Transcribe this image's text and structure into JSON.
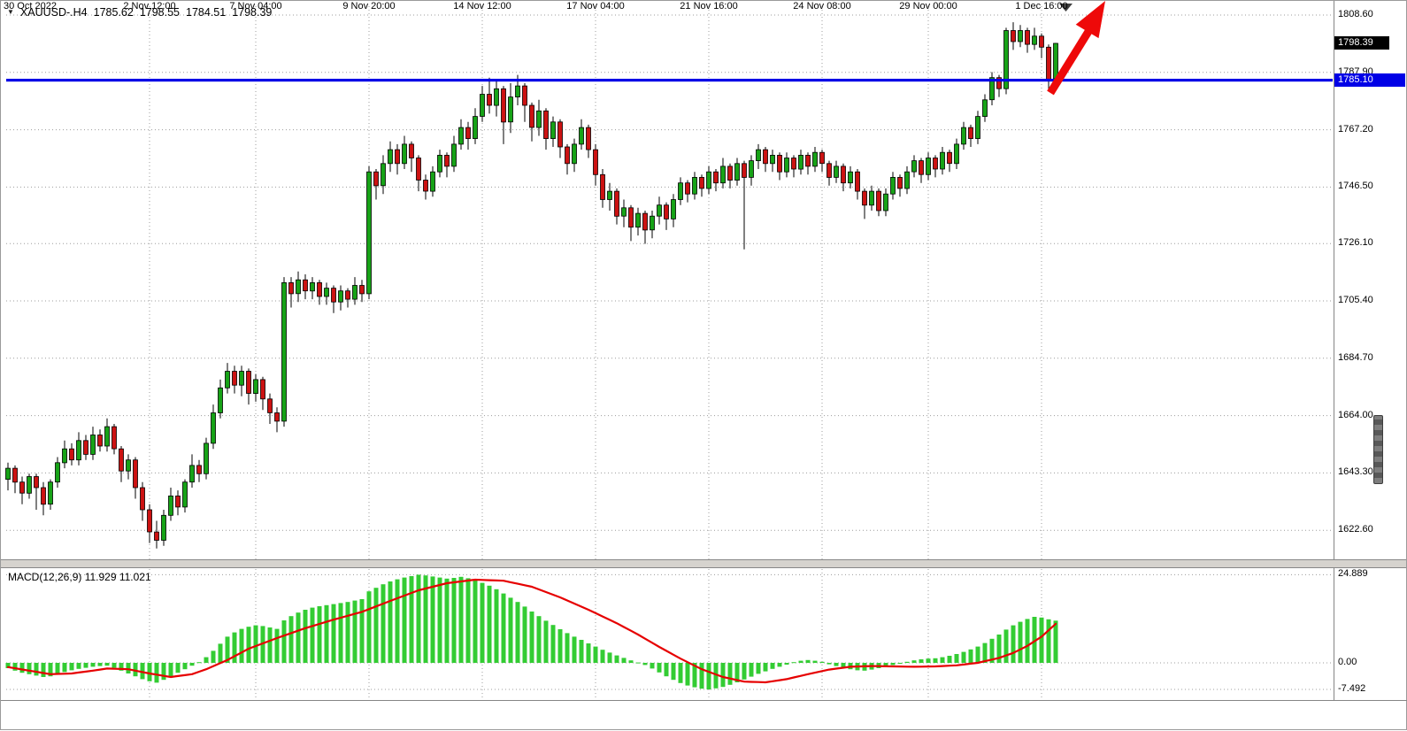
{
  "header": {
    "dropdown_icon": "▼",
    "symbol_period": "XAUUSD-.H4",
    "open": "1785.62",
    "high": "1798.55",
    "low": "1784.51",
    "close": "1798.39"
  },
  "colors": {
    "up": "#17a317",
    "down": "#cc1212",
    "outline": "#000000",
    "wick": "#000000",
    "grid": "#9c9c9c",
    "hline": "#0000e6",
    "macd_hist": "#33cc33",
    "macd_signal": "#e60000",
    "arrow": "#ee0909",
    "anchor": "#3f3f3f",
    "badge_current_bg": "#000000",
    "badge_hline_bg": "#0000e6"
  },
  "chart_data": {
    "type": "candlestick",
    "title": "XAUUSD-.H4",
    "timeframe": "H4",
    "legend": "none",
    "grid": "dotted",
    "price_gridlines": [
      {
        "text": "1808.60",
        "value": 1808.6
      },
      {
        "text": "1787.90",
        "value": 1787.9
      },
      {
        "text": "1767.20",
        "value": 1767.2
      },
      {
        "text": "1746.50",
        "value": 1746.5
      },
      {
        "text": "1726.10",
        "value": 1726.1
      },
      {
        "text": "1705.40",
        "value": 1705.4
      },
      {
        "text": "1684.70",
        "value": 1684.7
      },
      {
        "text": "1664.00",
        "value": 1664.0
      },
      {
        "text": "1643.30",
        "value": 1643.3
      },
      {
        "text": "1622.60",
        "value": 1622.6
      }
    ],
    "time_labels": [
      {
        "text": "30 Oct 2022",
        "bar": 0
      },
      {
        "text": "2 Nov 12:00",
        "bar": 20
      },
      {
        "text": "7 Nov 04:00",
        "bar": 35
      },
      {
        "text": "9 Nov 20:00",
        "bar": 51
      },
      {
        "text": "14 Nov 12:00",
        "bar": 67
      },
      {
        "text": "17 Nov 04:00",
        "bar": 83
      },
      {
        "text": "21 Nov 16:00",
        "bar": 99
      },
      {
        "text": "24 Nov 08:00",
        "bar": 115
      },
      {
        "text": "29 Nov 00:00",
        "bar": 130
      },
      {
        "text": "1 Dec 16:00",
        "bar": 146
      }
    ],
    "horizontal_line": {
      "value": 1785.1,
      "label": "1785.10"
    },
    "last_price": {
      "value": 1798.39,
      "label": "1798.39"
    },
    "annotation": {
      "shape": "arrow",
      "direction": "up"
    },
    "ohlc": [
      [
        1641,
        1647,
        1637,
        1645
      ],
      [
        1645,
        1646,
        1636,
        1640
      ],
      [
        1640,
        1642,
        1632,
        1636
      ],
      [
        1636,
        1643,
        1634,
        1642
      ],
      [
        1642,
        1643,
        1630,
        1638
      ],
      [
        1638,
        1640,
        1628,
        1632
      ],
      [
        1632,
        1641,
        1630,
        1640
      ],
      [
        1640,
        1649,
        1638,
        1647
      ],
      [
        1647,
        1655,
        1645,
        1652
      ],
      [
        1652,
        1654,
        1646,
        1648
      ],
      [
        1648,
        1658,
        1646,
        1655
      ],
      [
        1655,
        1657,
        1648,
        1650
      ],
      [
        1650,
        1660,
        1648,
        1657
      ],
      [
        1657,
        1659,
        1651,
        1653
      ],
      [
        1653,
        1663,
        1651,
        1660
      ],
      [
        1660,
        1661,
        1650,
        1652
      ],
      [
        1652,
        1653,
        1640,
        1644
      ],
      [
        1644,
        1650,
        1641,
        1648
      ],
      [
        1648,
        1649,
        1634,
        1638
      ],
      [
        1638,
        1640,
        1626,
        1630
      ],
      [
        1630,
        1632,
        1618,
        1622
      ],
      [
        1622,
        1626,
        1616,
        1619
      ],
      [
        1619,
        1630,
        1617,
        1628
      ],
      [
        1628,
        1638,
        1626,
        1635
      ],
      [
        1635,
        1637,
        1628,
        1631
      ],
      [
        1631,
        1641,
        1629,
        1640
      ],
      [
        1640,
        1650,
        1638,
        1646
      ],
      [
        1646,
        1648,
        1640,
        1643
      ],
      [
        1643,
        1656,
        1641,
        1654
      ],
      [
        1654,
        1668,
        1652,
        1665
      ],
      [
        1665,
        1677,
        1663,
        1674
      ],
      [
        1674,
        1683,
        1672,
        1680
      ],
      [
        1680,
        1682,
        1672,
        1675
      ],
      [
        1675,
        1682,
        1671,
        1680
      ],
      [
        1680,
        1681,
        1668,
        1672
      ],
      [
        1672,
        1679,
        1669,
        1677
      ],
      [
        1677,
        1678,
        1666,
        1670
      ],
      [
        1670,
        1672,
        1661,
        1665
      ],
      [
        1665,
        1667,
        1658,
        1662
      ],
      [
        1662,
        1714,
        1660,
        1712
      ],
      [
        1712,
        1714,
        1703,
        1708
      ],
      [
        1708,
        1716,
        1705,
        1713
      ],
      [
        1713,
        1715,
        1706,
        1709
      ],
      [
        1709,
        1714,
        1706,
        1712
      ],
      [
        1712,
        1713,
        1704,
        1707
      ],
      [
        1707,
        1712,
        1704,
        1710
      ],
      [
        1710,
        1711,
        1701,
        1705
      ],
      [
        1705,
        1711,
        1702,
        1709
      ],
      [
        1709,
        1710,
        1703,
        1706
      ],
      [
        1706,
        1714,
        1704,
        1711
      ],
      [
        1711,
        1713,
        1705,
        1708
      ],
      [
        1708,
        1754,
        1706,
        1752
      ],
      [
        1752,
        1753,
        1742,
        1747
      ],
      [
        1747,
        1758,
        1744,
        1755
      ],
      [
        1755,
        1763,
        1752,
        1760
      ],
      [
        1760,
        1762,
        1751,
        1755
      ],
      [
        1755,
        1765,
        1753,
        1762
      ],
      [
        1762,
        1763,
        1752,
        1757
      ],
      [
        1757,
        1758,
        1745,
        1749
      ],
      [
        1749,
        1751,
        1742,
        1745
      ],
      [
        1745,
        1754,
        1743,
        1752
      ],
      [
        1752,
        1760,
        1750,
        1758
      ],
      [
        1758,
        1759,
        1750,
        1754
      ],
      [
        1754,
        1765,
        1752,
        1762
      ],
      [
        1762,
        1771,
        1760,
        1768
      ],
      [
        1768,
        1770,
        1760,
        1764
      ],
      [
        1764,
        1775,
        1762,
        1772
      ],
      [
        1772,
        1783,
        1770,
        1780
      ],
      [
        1780,
        1786,
        1773,
        1776
      ],
      [
        1776,
        1785,
        1772,
        1782
      ],
      [
        1782,
        1783,
        1762,
        1770
      ],
      [
        1770,
        1784,
        1766,
        1779
      ],
      [
        1779,
        1787,
        1776,
        1783
      ],
      [
        1783,
        1784,
        1770,
        1776
      ],
      [
        1776,
        1777,
        1763,
        1768
      ],
      [
        1768,
        1778,
        1765,
        1774
      ],
      [
        1774,
        1775,
        1760,
        1764
      ],
      [
        1764,
        1772,
        1761,
        1770
      ],
      [
        1770,
        1771,
        1757,
        1761
      ],
      [
        1761,
        1762,
        1751,
        1755
      ],
      [
        1755,
        1764,
        1752,
        1762
      ],
      [
        1762,
        1771,
        1760,
        1768
      ],
      [
        1768,
        1769,
        1757,
        1760
      ],
      [
        1760,
        1762,
        1747,
        1751
      ],
      [
        1751,
        1753,
        1739,
        1742
      ],
      [
        1742,
        1748,
        1738,
        1745
      ],
      [
        1745,
        1746,
        1733,
        1736
      ],
      [
        1736,
        1742,
        1732,
        1739
      ],
      [
        1739,
        1740,
        1727,
        1732
      ],
      [
        1732,
        1739,
        1729,
        1737
      ],
      [
        1737,
        1738,
        1726,
        1731
      ],
      [
        1731,
        1738,
        1728,
        1736
      ],
      [
        1736,
        1743,
        1733,
        1740
      ],
      [
        1740,
        1741,
        1731,
        1735
      ],
      [
        1735,
        1744,
        1732,
        1742
      ],
      [
        1742,
        1750,
        1740,
        1748
      ],
      [
        1748,
        1749,
        1741,
        1744
      ],
      [
        1744,
        1752,
        1742,
        1750
      ],
      [
        1750,
        1751,
        1743,
        1746
      ],
      [
        1746,
        1754,
        1744,
        1752
      ],
      [
        1752,
        1753,
        1745,
        1748
      ],
      [
        1748,
        1757,
        1746,
        1754
      ],
      [
        1754,
        1755,
        1746,
        1749
      ],
      [
        1749,
        1757,
        1747,
        1755
      ],
      [
        1755,
        1756,
        1724,
        1750
      ],
      [
        1750,
        1758,
        1747,
        1756
      ],
      [
        1756,
        1762,
        1753,
        1760
      ],
      [
        1760,
        1761,
        1752,
        1755
      ],
      [
        1755,
        1760,
        1752,
        1758
      ],
      [
        1758,
        1759,
        1749,
        1752
      ],
      [
        1752,
        1759,
        1750,
        1757
      ],
      [
        1757,
        1758,
        1750,
        1753
      ],
      [
        1753,
        1760,
        1751,
        1758
      ],
      [
        1758,
        1759,
        1751,
        1754
      ],
      [
        1754,
        1761,
        1752,
        1759
      ],
      [
        1759,
        1760,
        1752,
        1755
      ],
      [
        1755,
        1756,
        1747,
        1750
      ],
      [
        1750,
        1756,
        1748,
        1754
      ],
      [
        1754,
        1755,
        1745,
        1748
      ],
      [
        1748,
        1754,
        1746,
        1752
      ],
      [
        1752,
        1753,
        1742,
        1745
      ],
      [
        1745,
        1746,
        1735,
        1740
      ],
      [
        1740,
        1747,
        1738,
        1745
      ],
      [
        1745,
        1746,
        1736,
        1738
      ],
      [
        1738,
        1746,
        1736,
        1744
      ],
      [
        1744,
        1752,
        1742,
        1750
      ],
      [
        1750,
        1751,
        1743,
        1746
      ],
      [
        1746,
        1754,
        1744,
        1752
      ],
      [
        1752,
        1758,
        1750,
        1756
      ],
      [
        1756,
        1757,
        1748,
        1751
      ],
      [
        1751,
        1759,
        1749,
        1757
      ],
      [
        1757,
        1758,
        1750,
        1753
      ],
      [
        1753,
        1761,
        1751,
        1759
      ],
      [
        1759,
        1760,
        1752,
        1755
      ],
      [
        1755,
        1764,
        1753,
        1762
      ],
      [
        1762,
        1770,
        1760,
        1768
      ],
      [
        1768,
        1769,
        1761,
        1764
      ],
      [
        1764,
        1774,
        1762,
        1772
      ],
      [
        1772,
        1780,
        1770,
        1778
      ],
      [
        1778,
        1788,
        1776,
        1786
      ],
      [
        1786,
        1787,
        1779,
        1782
      ],
      [
        1782,
        1804,
        1780,
        1803
      ],
      [
        1803,
        1806,
        1796,
        1799
      ],
      [
        1799,
        1805,
        1797,
        1803
      ],
      [
        1803,
        1804,
        1795,
        1798
      ],
      [
        1798,
        1804,
        1796,
        1801
      ],
      [
        1801,
        1802,
        1793,
        1797
      ],
      [
        1797,
        1798,
        1781,
        1785
      ],
      [
        1785.62,
        1798.55,
        1784.51,
        1798.39
      ]
    ],
    "macd": {
      "label": "MACD(12,26,9) 11.929 11.021",
      "current_macd": 11.929,
      "current_signal": 11.021,
      "gridlines": [
        {
          "text": "24.889",
          "value": 24.889
        },
        {
          "text": "0.00",
          "value": 0
        },
        {
          "text": "-7.492",
          "value": -7.492
        }
      ],
      "histogram": [
        -1.5,
        -2.2,
        -2.8,
        -3.2,
        -3.6,
        -4.0,
        -3.8,
        -3.2,
        -2.6,
        -2.1,
        -1.7,
        -1.4,
        -1.1,
        -0.9,
        -0.8,
        -1.4,
        -2.2,
        -3.0,
        -3.8,
        -4.6,
        -5.2,
        -5.6,
        -4.8,
        -3.8,
        -2.8,
        -1.8,
        -0.8,
        0.2,
        1.6,
        3.4,
        5.4,
        7.4,
        8.6,
        9.6,
        10.2,
        10.6,
        10.4,
        10.0,
        9.6,
        12.0,
        13.2,
        14.2,
        15.0,
        15.6,
        16.0,
        16.3,
        16.6,
        16.9,
        17.2,
        17.6,
        18.0,
        20.2,
        21.2,
        22.2,
        23.0,
        23.6,
        24.1,
        24.5,
        24.889,
        24.7,
        24.4,
        24.1,
        23.8,
        24.0,
        24.3,
        23.9,
        23.3,
        22.6,
        21.8,
        20.8,
        19.6,
        18.4,
        17.2,
        15.9,
        14.5,
        13.2,
        11.9,
        10.7,
        9.5,
        8.4,
        7.4,
        6.5,
        5.5,
        4.6,
        3.7,
        2.9,
        2.1,
        1.4,
        0.7,
        0.1,
        -0.6,
        -1.6,
        -2.7,
        -3.8,
        -4.8,
        -5.7,
        -6.4,
        -6.9,
        -7.3,
        -7.492,
        -7.2,
        -6.8,
        -6.2,
        -5.5,
        -4.7,
        -3.9,
        -3.1,
        -2.4,
        -1.7,
        -1.1,
        -0.5,
        0.2,
        0.6,
        0.8,
        0.6,
        0.3,
        -0.4,
        -0.9,
        -1.4,
        -1.8,
        -2.1,
        -2.2,
        -1.9,
        -1.5,
        -1.1,
        -0.6,
        -0.1,
        0.3,
        0.7,
        1.0,
        1.2,
        1.3,
        1.6,
        2.0,
        2.5,
        3.1,
        3.8,
        4.6,
        5.6,
        6.8,
        8.0,
        9.4,
        10.6,
        11.6,
        12.4,
        13.0,
        12.8,
        12.3,
        11.929
      ],
      "signal_points": [
        [
          0,
          -1.2
        ],
        [
          3,
          -2.2
        ],
        [
          6,
          -3.2
        ],
        [
          9,
          -3.0
        ],
        [
          12,
          -2.2
        ],
        [
          14,
          -1.6
        ],
        [
          17,
          -1.8
        ],
        [
          20,
          -3.0
        ],
        [
          23,
          -4.0
        ],
        [
          26,
          -3.2
        ],
        [
          28,
          -1.8
        ],
        [
          31,
          0.8
        ],
        [
          34,
          4.0
        ],
        [
          38,
          7.0
        ],
        [
          42,
          9.8
        ],
        [
          46,
          12.2
        ],
        [
          50,
          14.4
        ],
        [
          54,
          17.5
        ],
        [
          58,
          20.5
        ],
        [
          62,
          22.5
        ],
        [
          66,
          23.5
        ],
        [
          70,
          23.2
        ],
        [
          74,
          21.5
        ],
        [
          78,
          18.5
        ],
        [
          82,
          15.0
        ],
        [
          86,
          11.2
        ],
        [
          89,
          8.0
        ],
        [
          92,
          4.5
        ],
        [
          95,
          1.2
        ],
        [
          98,
          -1.8
        ],
        [
          101,
          -4.0
        ],
        [
          104,
          -5.3
        ],
        [
          107,
          -5.5
        ],
        [
          110,
          -4.6
        ],
        [
          113,
          -3.2
        ],
        [
          116,
          -1.9
        ],
        [
          119,
          -1.1
        ],
        [
          122,
          -0.9
        ],
        [
          125,
          -1.0
        ],
        [
          128,
          -1.1
        ],
        [
          131,
          -1.0
        ],
        [
          134,
          -0.7
        ],
        [
          137,
          0.0
        ],
        [
          140,
          1.4
        ],
        [
          142,
          2.8
        ],
        [
          144,
          4.8
        ],
        [
          146,
          7.4
        ],
        [
          148,
          11.021
        ]
      ]
    }
  }
}
